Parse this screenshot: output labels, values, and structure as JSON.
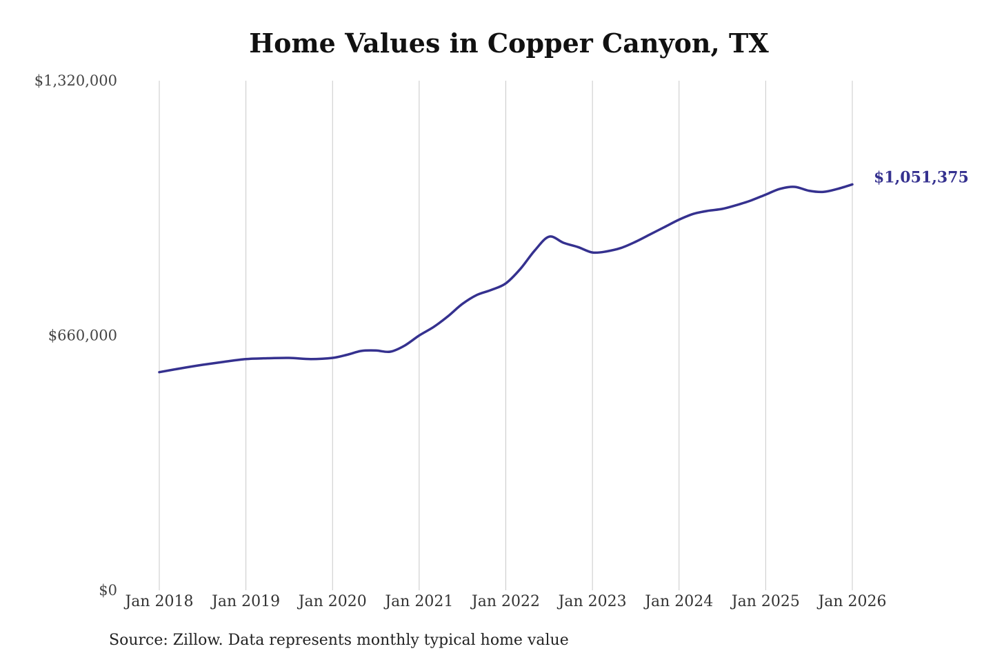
{
  "chart_data": {
    "type": "line",
    "title": "Home Values in Copper Canyon, TX",
    "xlabel": "",
    "ylabel": "",
    "x_tick_labels": [
      "Jan 2018",
      "Jan 2019",
      "Jan 2020",
      "Jan 2021",
      "Jan 2022",
      "Jan 2023",
      "Jan 2024",
      "Jan 2025",
      "Jan 2026"
    ],
    "y_tick_labels": [
      "$0",
      "$660,000",
      "$1,320,000"
    ],
    "y_ticks": [
      0,
      660000,
      1320000
    ],
    "ylim": [
      0,
      1320000
    ],
    "xlim": [
      "2018-01",
      "2026-01"
    ],
    "grid": "vertical",
    "line_color": "#35318f",
    "series": [
      {
        "end_label": "$1,051,375",
        "x": [
          "2018-01",
          "2018-04",
          "2018-07",
          "2018-10",
          "2019-01",
          "2019-04",
          "2019-07",
          "2019-10",
          "2020-01",
          "2020-03",
          "2020-05",
          "2020-07",
          "2020-09",
          "2020-11",
          "2021-01",
          "2021-03",
          "2021-05",
          "2021-07",
          "2021-09",
          "2021-11",
          "2022-01",
          "2022-03",
          "2022-05",
          "2022-07",
          "2022-09",
          "2022-11",
          "2023-01",
          "2023-03",
          "2023-05",
          "2023-07",
          "2023-09",
          "2023-11",
          "2024-01",
          "2024-03",
          "2024-05",
          "2024-07",
          "2024-09",
          "2024-11",
          "2025-01",
          "2025-03",
          "2025-05",
          "2025-07",
          "2025-09",
          "2025-11",
          "2026-01"
        ],
        "values": [
          565000,
          575000,
          584000,
          592000,
          599000,
          601000,
          602000,
          599000,
          602000,
          610000,
          620000,
          621000,
          618000,
          634000,
          660000,
          682000,
          710000,
          742000,
          765000,
          778000,
          795000,
          832000,
          880000,
          916000,
          900000,
          889000,
          875000,
          878000,
          887000,
          903000,
          922000,
          941000,
          960000,
          975000,
          983000,
          988000,
          998000,
          1010000,
          1025000,
          1040000,
          1045000,
          1035000,
          1032000,
          1040000,
          1051375
        ]
      }
    ]
  },
  "source_text": "Source: Zillow. Data represents monthly typical home value"
}
